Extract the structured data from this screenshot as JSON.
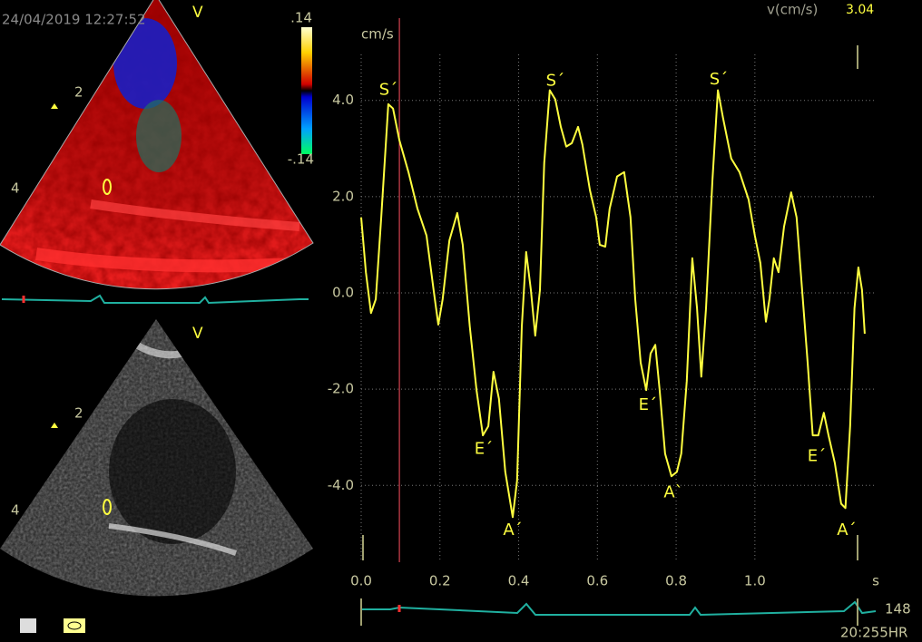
{
  "left_panel": {
    "timestamp": "24/04/2019 12:27:52",
    "color_doppler": {
      "orientation": "V",
      "depth_labels": [
        "2",
        "4"
      ],
      "scale_max": ".14",
      "scale_min": "-.14"
    },
    "bmode": {
      "orientation": "V",
      "depth_labels": [
        "2",
        "4"
      ]
    }
  },
  "readout": {
    "label": "v(cm/s)",
    "value": "3.04"
  },
  "heart_rate": {
    "value": "148",
    "label": "20:255HR"
  },
  "chart_data": {
    "type": "line",
    "y_label": "cm/s",
    "x_label": "s",
    "x": [
      0,
      0.012,
      0.025,
      0.037,
      0.051,
      0.069,
      0.081,
      0.097,
      0.12,
      0.143,
      0.166,
      0.184,
      0.196,
      0.207,
      0.224,
      0.244,
      0.258,
      0.276,
      0.293,
      0.309,
      0.323,
      0.336,
      0.35,
      0.366,
      0.385,
      0.396,
      0.408,
      0.419,
      0.431,
      0.442,
      0.454,
      0.465,
      0.479,
      0.493,
      0.507,
      0.521,
      0.535,
      0.551,
      0.562,
      0.581,
      0.597,
      0.606,
      0.62,
      0.631,
      0.65,
      0.668,
      0.684,
      0.696,
      0.71,
      0.724,
      0.735,
      0.747,
      0.758,
      0.772,
      0.788,
      0.802,
      0.813,
      0.827,
      0.841,
      0.853,
      0.864,
      0.876,
      0.892,
      0.906,
      0.919,
      0.94,
      0.961,
      0.984,
      1.0,
      1.014,
      1.028,
      1.037,
      1.048,
      1.06,
      1.074,
      1.092,
      1.106,
      1.12,
      1.134,
      1.147,
      1.161,
      1.175,
      1.187,
      1.203,
      1.219,
      1.23,
      1.242,
      1.253,
      1.263,
      1.272,
      1.279
    ],
    "series": [
      {
        "name": "v",
        "color": "#ffff40",
        "values": [
          1.57,
          0.43,
          -0.42,
          -0.13,
          1.57,
          3.92,
          3.83,
          3.17,
          2.51,
          1.75,
          1.19,
          0.06,
          -0.66,
          -0.13,
          1.09,
          1.66,
          1.0,
          -0.7,
          -2.02,
          -2.96,
          -2.77,
          -1.64,
          -2.2,
          -3.72,
          -4.66,
          -3.9,
          -0.7,
          0.85,
          0.06,
          -0.89,
          0.06,
          2.7,
          4.21,
          4.02,
          3.45,
          3.04,
          3.11,
          3.45,
          3.08,
          2.13,
          1.57,
          1.0,
          0.96,
          1.75,
          2.42,
          2.51,
          1.57,
          -0.13,
          -1.45,
          -2.02,
          -1.26,
          -1.08,
          -2.02,
          -3.34,
          -3.81,
          -3.72,
          -3.34,
          -1.83,
          0.72,
          -0.32,
          -1.74,
          -0.32,
          2.32,
          4.21,
          3.64,
          2.79,
          2.51,
          1.94,
          1.19,
          0.62,
          -0.6,
          -0.13,
          0.72,
          0.43,
          1.38,
          2.09,
          1.57,
          0.06,
          -1.45,
          -2.96,
          -2.96,
          -2.49,
          -2.96,
          -3.53,
          -4.38,
          -4.47,
          -2.77,
          -0.32,
          0.53,
          0.06,
          -0.85
        ]
      }
    ],
    "xlim": [
      0,
      1.3
    ],
    "ylim": [
      -5.2,
      5.2
    ],
    "xticks": [
      {
        "value": 0,
        "label": "0.0"
      },
      0.2,
      0.4,
      0.6,
      0.8,
      {
        "value": 1,
        "label": "1.0"
      }
    ],
    "yticks": [
      {
        "value": -4,
        "label": "-4.0"
      },
      {
        "value": -2,
        "label": "-2.0"
      },
      {
        "value": 0,
        "label": "0.0"
      },
      {
        "value": 2,
        "label": "2.0"
      },
      {
        "value": 4,
        "label": "4.0"
      }
    ],
    "grid": true,
    "cursor": 0.097,
    "annotations": [
      {
        "text": "S´",
        "x": 0.069,
        "y": 4.21
      },
      {
        "text": "E´",
        "x": 0.311,
        "y": -3.25
      },
      {
        "text": "A´",
        "x": 0.385,
        "y": -4.94
      },
      {
        "text": "S´",
        "x": 0.493,
        "y": 4.4
      },
      {
        "text": "E´",
        "x": 0.728,
        "y": -2.34
      },
      {
        "text": "A`",
        "x": 0.793,
        "y": -4.15
      },
      {
        "text": "S´",
        "x": 0.908,
        "y": 4.43
      },
      {
        "text": "E´",
        "x": 1.157,
        "y": -3.4
      },
      {
        "text": "A´",
        "x": 1.233,
        "y": -4.94
      }
    ]
  }
}
